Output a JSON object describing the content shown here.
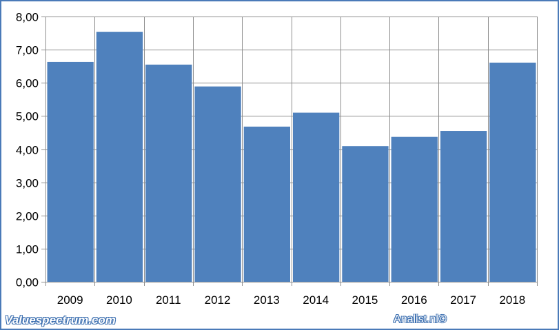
{
  "chart_data": {
    "type": "bar",
    "categories": [
      "2009",
      "2010",
      "2011",
      "2012",
      "2013",
      "2014",
      "2015",
      "2016",
      "2017",
      "2018"
    ],
    "values": [
      6.63,
      7.54,
      6.55,
      5.89,
      4.68,
      5.1,
      4.09,
      4.37,
      4.55,
      6.61
    ],
    "y_ticks": [
      "0,00",
      "1,00",
      "2,00",
      "3,00",
      "4,00",
      "5,00",
      "6,00",
      "7,00",
      "8,00"
    ],
    "ylim": [
      0,
      8
    ],
    "grid": true,
    "colors": {
      "bar": "#4f81bd",
      "grid": "#8c8c8c",
      "frame": "#4a7ab8"
    }
  },
  "footer": {
    "left": "Valuespectrum.com",
    "right": "Analist.nl©"
  }
}
